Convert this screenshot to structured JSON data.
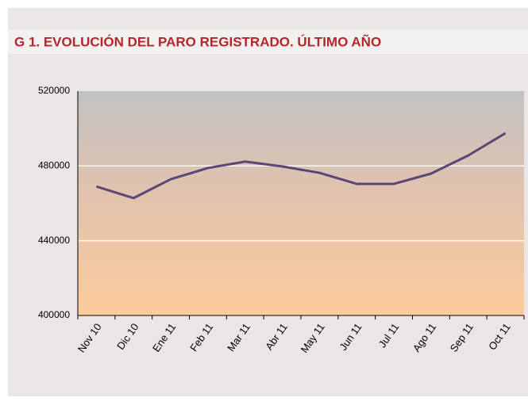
{
  "chart_data": {
    "type": "line",
    "title": "G 1. EVOLUCIÓN DEL PARO REGISTRADO. ÚLTIMO AÑO",
    "categories": [
      "Nov 10",
      "Dic 10",
      "Ene 11",
      "Feb 11",
      "Mar 11",
      "Abr 11",
      "May 11",
      "Jun 11",
      "Jul 11",
      "Ago 11",
      "Sep 11",
      "Oct 11"
    ],
    "values": [
      469000,
      462800,
      472900,
      478900,
      482300,
      479700,
      476300,
      470400,
      470400,
      475900,
      485600,
      497500
    ],
    "color": "#5e4577",
    "ylim": [
      400000,
      520000
    ],
    "yticks": [
      400000,
      440000,
      480000,
      520000
    ],
    "grid": true
  }
}
